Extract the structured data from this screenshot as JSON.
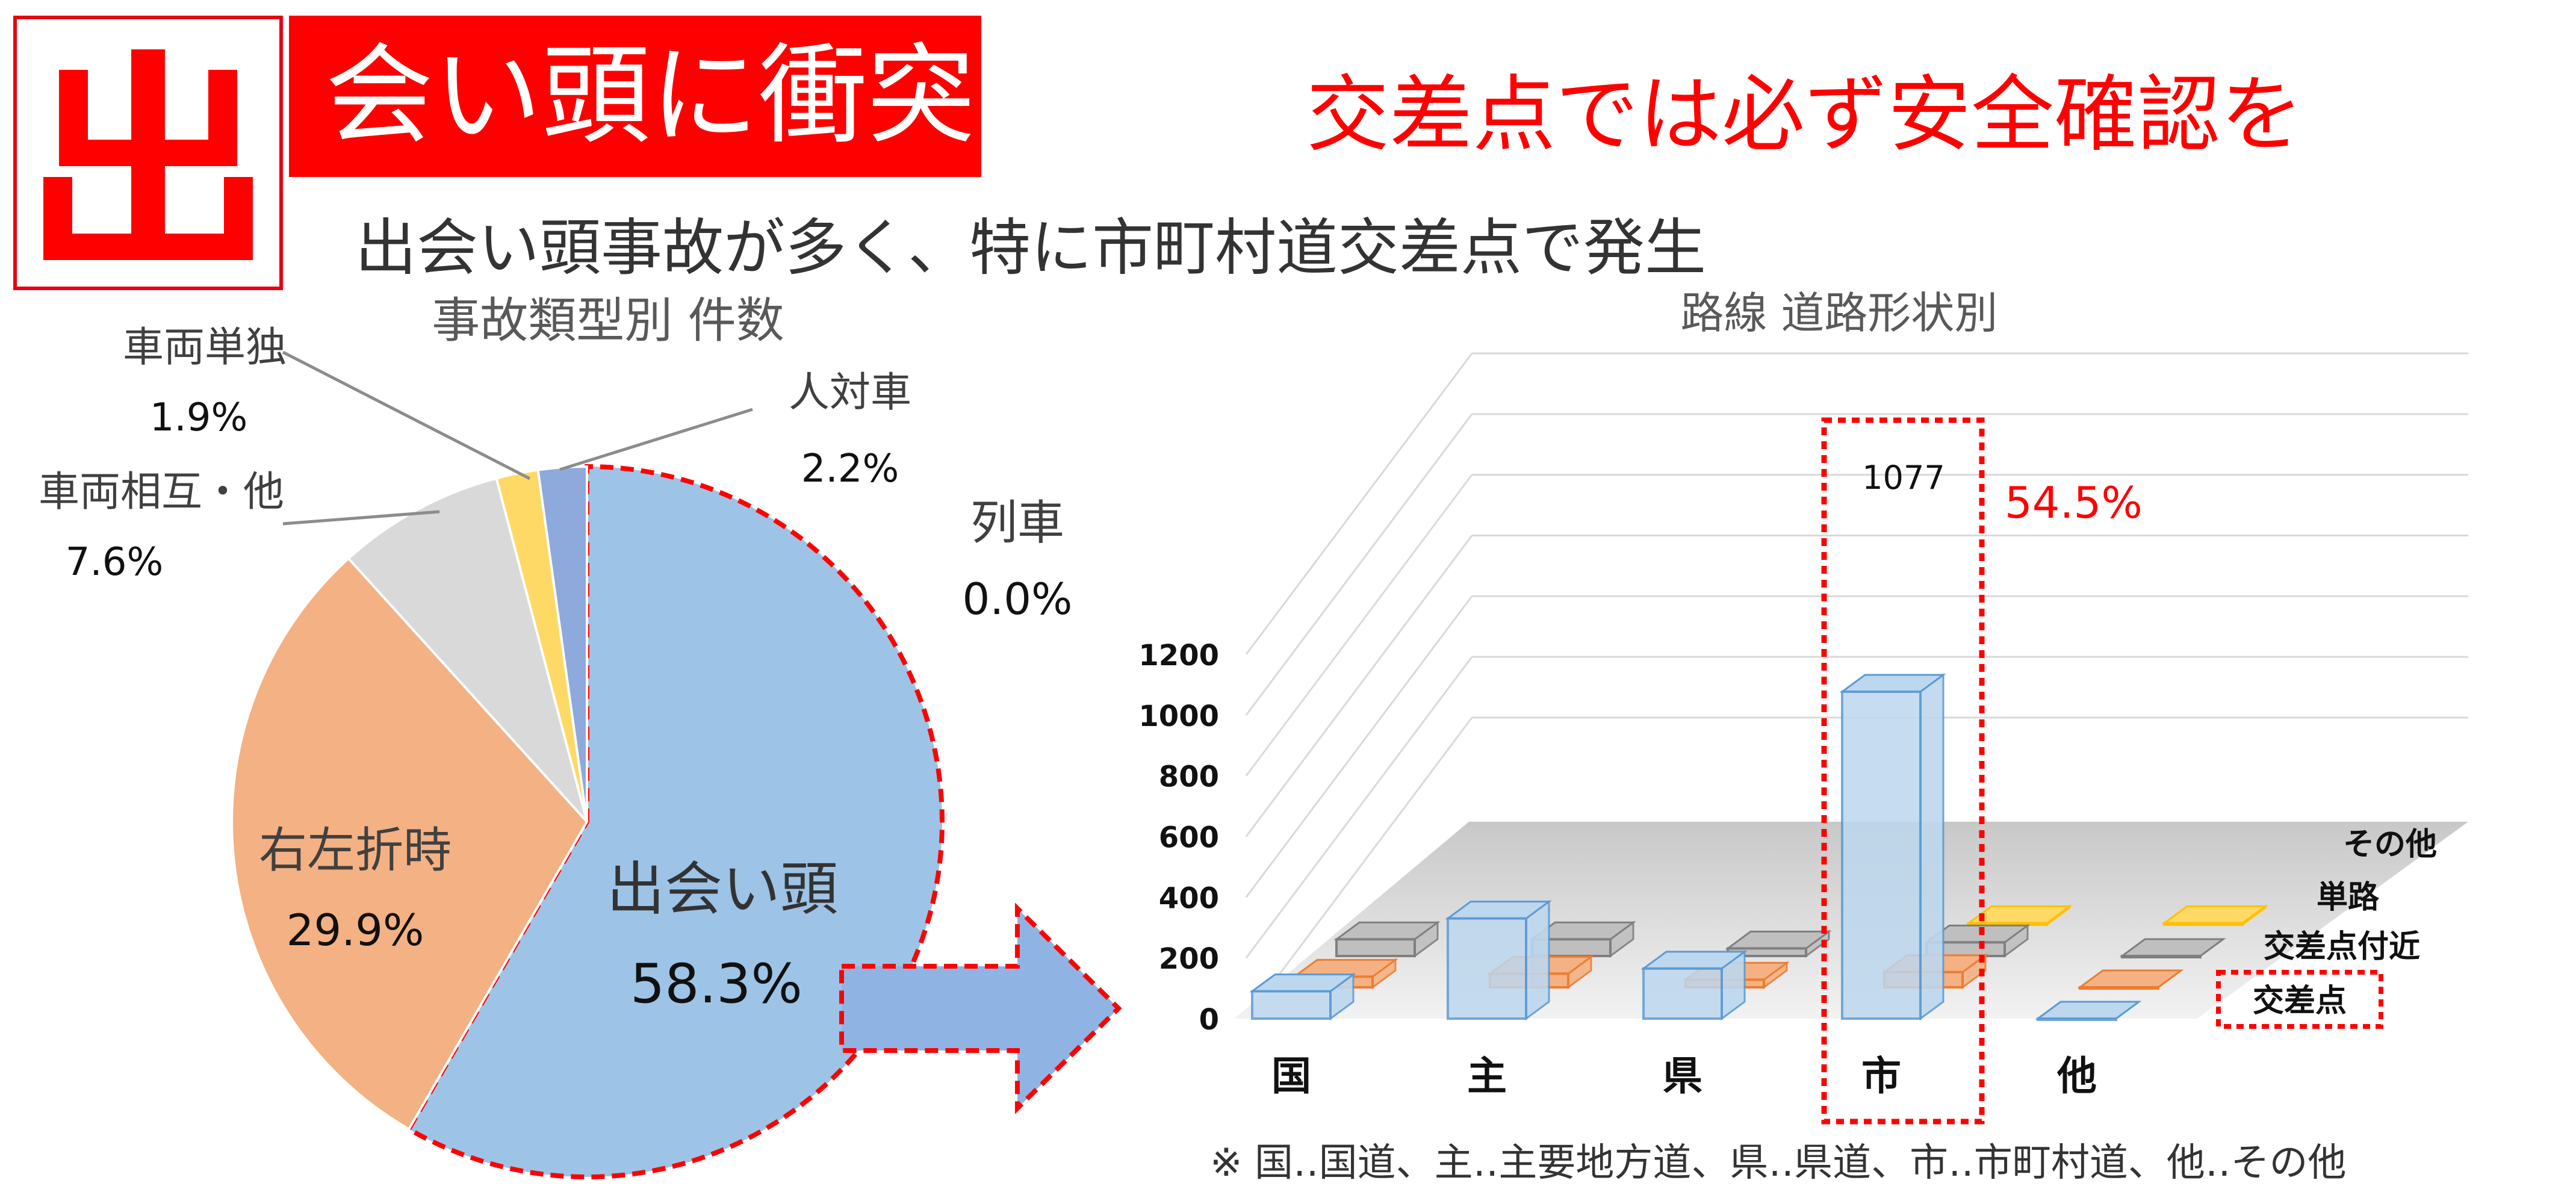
{
  "header": {
    "big_kanji": "出",
    "banner_text": "会い頭に衝突",
    "headline": "交差点では必ず安全確認を",
    "subtitle": "出会い頭事故が多く、特に市町村道交差点で発生"
  },
  "colors": {
    "accent_red": "#ff0000",
    "deai": "#9dc3e6",
    "usetsu": "#f4b183",
    "sogo": "#d9d9d9",
    "tandoku": "#ffd966",
    "jintai": "#8ea9db",
    "bar_front": "#bdd7ee",
    "bar_orange": "#f4b183",
    "bar_gray": "#bfbfbf",
    "bar_yellow": "#ffd966"
  },
  "chart_data": [
    {
      "type": "pie",
      "title": "事故類型別 件数",
      "slices": [
        {
          "name": "出会い頭",
          "label": "58.3%",
          "value": 58.3,
          "color": "deai"
        },
        {
          "name": "右左折時",
          "label": "29.9%",
          "value": 29.9,
          "color": "usetsu"
        },
        {
          "name": "車両相互・他",
          "label": "7.6%",
          "value": 7.6,
          "color": "sogo"
        },
        {
          "name": "車両単独",
          "label": "1.9%",
          "value": 1.9,
          "color": "tandoku"
        },
        {
          "name": "人対車",
          "label": "2.2%",
          "value": 2.2,
          "color": "jintai"
        },
        {
          "name": "列車",
          "label": "0.0%",
          "value": 0.0,
          "color": "jintai"
        }
      ],
      "highlight": "出会い頭"
    },
    {
      "type": "bar",
      "title": "路線 道路形状別",
      "categories": [
        "国",
        "主",
        "県",
        "市",
        "他"
      ],
      "depth_series": [
        "交差点",
        "交差点付近",
        "単路",
        "その他"
      ],
      "yticks": [
        0,
        200,
        400,
        600,
        800,
        1000,
        1200
      ],
      "ylim": [
        0,
        1200
      ],
      "series": [
        {
          "name": "交差点",
          "values": [
            90,
            330,
            165,
            1077,
            0
          ]
        },
        {
          "name": "交差点付近",
          "values": [
            35,
            45,
            25,
            50,
            0
          ]
        },
        {
          "name": "単路",
          "values": [
            55,
            55,
            25,
            45,
            0
          ]
        },
        {
          "name": "その他",
          "values": [
            0,
            0,
            0,
            5,
            5
          ]
        }
      ],
      "data_label": "1077",
      "highlight_label": "54.5%",
      "highlight_category": "市"
    }
  ],
  "footnote": "※ 国‥国道、主‥主要地方道、県‥県道、市‥市町村道、他‥その他"
}
